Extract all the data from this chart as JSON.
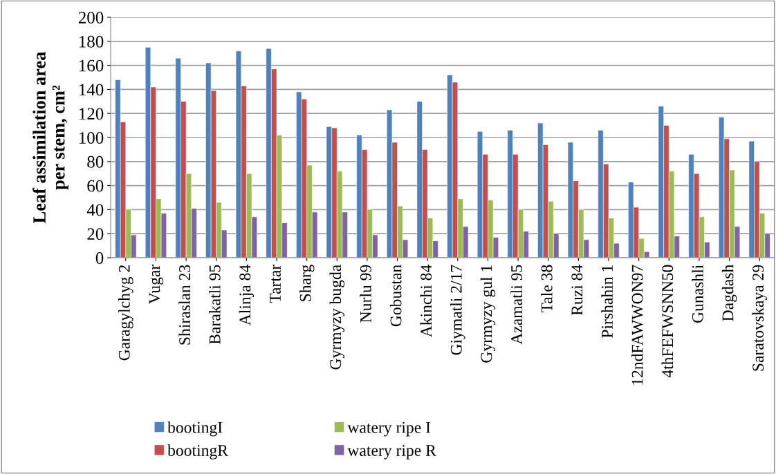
{
  "chart_data": {
    "type": "bar",
    "ylabel": "Leaf assimilation area\nper stem, cm²",
    "categories": [
      "Garagylchyg 2",
      "Vugar",
      "Shiraslan 23",
      "Barakatli 95",
      "Alinja 84",
      "Tartar",
      "Sharg",
      "Gyrmyzy bugda",
      "Nurlu 99",
      "Gobustan",
      "Akinchi 84",
      "Giymatli 2/17",
      "Gyrmyzy gul 1",
      "Azamatli 95",
      "Tale 38",
      "Ruzi 84",
      "Pirshahin 1",
      "12ndFAWWON97",
      "4thFEFWSNN50",
      "Gunashli",
      "Dagdash",
      "Saratovskaya 29"
    ],
    "series": [
      {
        "name": "bootingI",
        "color": "#4f81bd",
        "values": [
          148,
          175,
          166,
          162,
          172,
          174,
          138,
          109,
          102,
          123,
          130,
          152,
          105,
          106,
          112,
          96,
          106,
          63,
          126,
          86,
          117,
          97
        ]
      },
      {
        "name": "bootingR",
        "color": "#c0504d",
        "values": [
          113,
          142,
          130,
          139,
          143,
          157,
          132,
          108,
          90,
          96,
          90,
          146,
          86,
          86,
          94,
          64,
          78,
          42,
          110,
          70,
          99,
          80
        ]
      },
      {
        "name": "watery ripe I",
        "color": "#9bbb59",
        "values": [
          40,
          49,
          70,
          46,
          70,
          102,
          77,
          72,
          40,
          43,
          33,
          49,
          48,
          40,
          47,
          40,
          33,
          16,
          72,
          34,
          73,
          37
        ]
      },
      {
        "name": "watery ripe R",
        "color": "#8064a2",
        "values": [
          19,
          37,
          41,
          23,
          34,
          29,
          38,
          38,
          19,
          15,
          14,
          26,
          17,
          22,
          20,
          15,
          12,
          5,
          18,
          13,
          26,
          20
        ]
      }
    ],
    "ylim": [
      0,
      200
    ],
    "yticks": [
      0,
      20,
      40,
      60,
      80,
      100,
      120,
      140,
      160,
      180,
      200
    ],
    "grid": "y",
    "legend": "bottom"
  }
}
